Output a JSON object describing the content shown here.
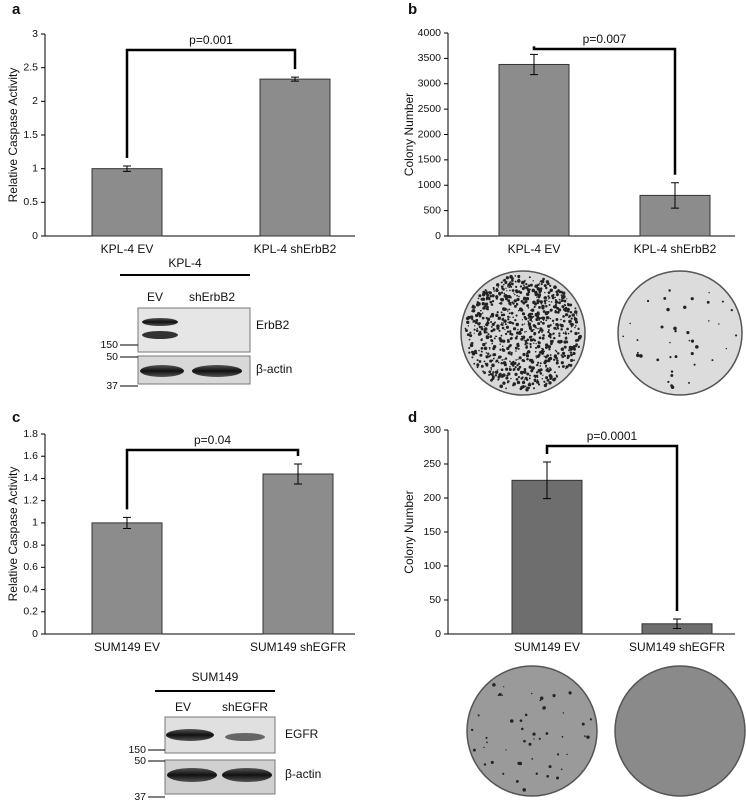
{
  "chart_data": [
    {
      "panel": "a",
      "type": "bar",
      "ylabel": "Relative Caspase Activity",
      "categories": [
        "KPL-4 EV",
        "KPL-4 shErbB2"
      ],
      "values": [
        1.0,
        2.33
      ],
      "errors": [
        0.04,
        0.03
      ],
      "annotation": "p=0.001",
      "ylim": [
        0,
        3
      ],
      "yticks": [
        0,
        0.5,
        1,
        1.5,
        2,
        2.5,
        3
      ],
      "color": "#8c8c8c"
    },
    {
      "panel": "b",
      "type": "bar",
      "ylabel": "Colony Number",
      "categories": [
        "KPL-4 EV",
        "KPL-4 shErbB2"
      ],
      "values": [
        3380,
        800
      ],
      "errors": [
        200,
        250
      ],
      "annotation": "p=0.007",
      "ylim": [
        0,
        4000
      ],
      "yticks": [
        0,
        500,
        1000,
        1500,
        2000,
        2500,
        3000,
        3500,
        4000
      ],
      "color": "#8c8c8c"
    },
    {
      "panel": "c",
      "type": "bar",
      "ylabel": "Relative Caspase Activity",
      "categories": [
        "SUM149 EV",
        "SUM149 shEGFR"
      ],
      "values": [
        1.0,
        1.44
      ],
      "errors": [
        0.05,
        0.09
      ],
      "annotation": "p=0.04",
      "ylim": [
        0,
        1.8
      ],
      "yticks": [
        0,
        0.2,
        0.4,
        0.6,
        0.8,
        1,
        1.2,
        1.4,
        1.6,
        1.8
      ],
      "color": "#8c8c8c"
    },
    {
      "panel": "d",
      "type": "bar",
      "ylabel": "Colony Number",
      "categories": [
        "SUM149 EV",
        "SUM149 shEGFR"
      ],
      "values": [
        226,
        15
      ],
      "errors": [
        27,
        7
      ],
      "annotation": "p=0.0001",
      "ylim": [
        0,
        300
      ],
      "yticks": [
        0,
        50,
        100,
        150,
        200,
        250,
        300
      ],
      "color": "#6e6e6e"
    }
  ],
  "blots": [
    {
      "title": "KPL-4",
      "lanes": [
        "EV",
        "shErbB2"
      ],
      "rows": [
        "ErbB2",
        "β-actin"
      ],
      "markers": [
        150,
        50,
        37
      ]
    },
    {
      "title": "SUM149",
      "lanes": [
        "EV",
        "shEGFR"
      ],
      "rows": [
        "EGFR",
        "β-actin"
      ],
      "markers": [
        150,
        50,
        37
      ]
    }
  ]
}
